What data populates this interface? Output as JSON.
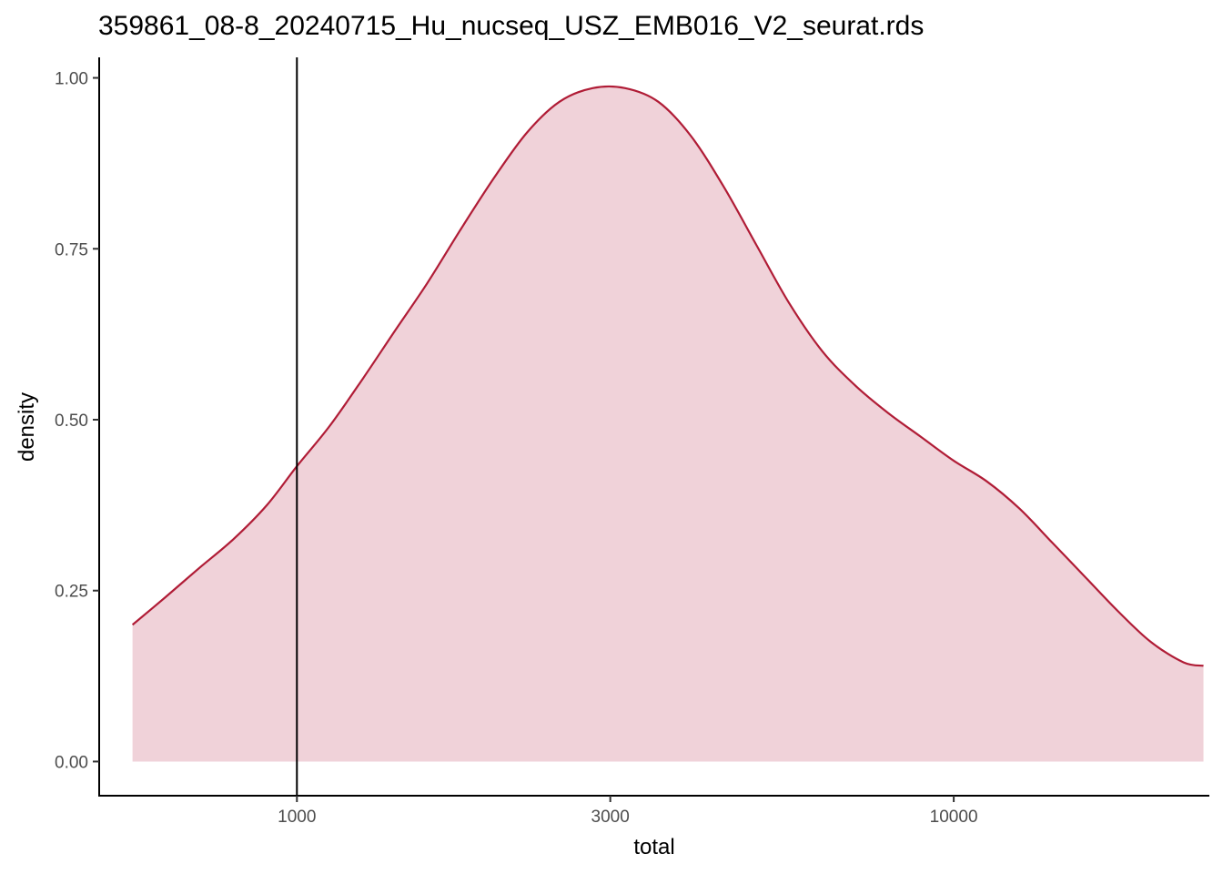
{
  "chart_data": {
    "type": "area",
    "title": "359861_08-8_20240715_Hu_nucseq_USZ_EMB016_V2_seurat.rds",
    "xlabel": "total",
    "ylabel": "density",
    "x_scale": "log10",
    "xlim": [
      500,
      24500
    ],
    "ylim": [
      -0.05,
      1.03
    ],
    "x_ticks": [
      {
        "value": 1000,
        "label": "1000"
      },
      {
        "value": 3000,
        "label": "3000"
      },
      {
        "value": 10000,
        "label": "10000"
      }
    ],
    "y_ticks": [
      {
        "value": 0,
        "label": "0.00"
      },
      {
        "value": 0.25,
        "label": "0.25"
      },
      {
        "value": 0.5,
        "label": "0.50"
      },
      {
        "value": 0.75,
        "label": "0.75"
      },
      {
        "value": 1,
        "label": "1.00"
      }
    ],
    "vline": 1000,
    "series": [
      {
        "x": [
          562,
          630,
          710,
          800,
          900,
          1000,
          1120,
          1260,
          1410,
          1580,
          1780,
          2000,
          2240,
          2510,
          2820,
          3160,
          3550,
          3980,
          4470,
          5010,
          5620,
          6310,
          7080,
          7940,
          8910,
          10000,
          11220,
          12590,
          14130,
          15850,
          17780,
          19950,
          22390,
          24000
        ],
        "values": [
          0.2,
          0.24,
          0.283,
          0.325,
          0.375,
          0.432,
          0.49,
          0.56,
          0.63,
          0.7,
          0.78,
          0.855,
          0.92,
          0.965,
          0.985,
          0.985,
          0.965,
          0.915,
          0.84,
          0.755,
          0.67,
          0.6,
          0.55,
          0.51,
          0.475,
          0.44,
          0.41,
          0.37,
          0.32,
          0.27,
          0.22,
          0.175,
          0.145,
          0.14
        ]
      }
    ],
    "colors": {
      "line": "#b01c36",
      "fill": "#f0d2d9",
      "vline": "#000000"
    },
    "grid": false,
    "legend": "none"
  }
}
